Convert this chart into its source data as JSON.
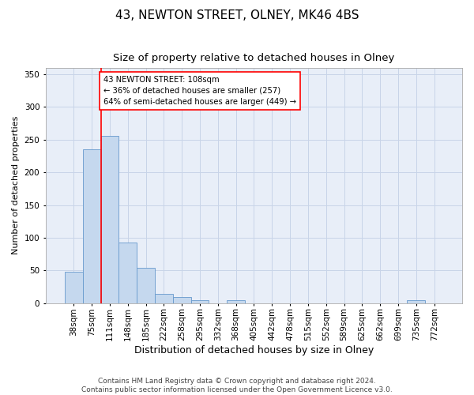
{
  "title": "43, NEWTON STREET, OLNEY, MK46 4BS",
  "subtitle": "Size of property relative to detached houses in Olney",
  "xlabel": "Distribution of detached houses by size in Olney",
  "ylabel": "Number of detached properties",
  "categories": [
    "38sqm",
    "75sqm",
    "111sqm",
    "148sqm",
    "185sqm",
    "222sqm",
    "258sqm",
    "295sqm",
    "332sqm",
    "368sqm",
    "405sqm",
    "442sqm",
    "478sqm",
    "515sqm",
    "552sqm",
    "589sqm",
    "625sqm",
    "662sqm",
    "699sqm",
    "735sqm",
    "772sqm"
  ],
  "bar_heights": [
    48,
    235,
    256,
    93,
    54,
    14,
    9,
    5,
    0,
    5,
    0,
    0,
    0,
    0,
    0,
    0,
    0,
    0,
    0,
    4,
    0
  ],
  "bar_color": "#c5d8ee",
  "bar_edge_color": "#6699cc",
  "property_line_index": 2,
  "annotation_text": "43 NEWTON STREET: 108sqm\n← 36% of detached houses are smaller (257)\n64% of semi-detached houses are larger (449) →",
  "annotation_box_color": "white",
  "annotation_box_edge_color": "red",
  "property_line_color": "red",
  "grid_color": "#c8d4e8",
  "plot_background_color": "#e8eef8",
  "ylim": [
    0,
    360
  ],
  "yticks": [
    0,
    50,
    100,
    150,
    200,
    250,
    300,
    350
  ],
  "footnote": "Contains HM Land Registry data © Crown copyright and database right 2024.\nContains public sector information licensed under the Open Government Licence v3.0.",
  "title_fontsize": 11,
  "subtitle_fontsize": 9.5,
  "xlabel_fontsize": 9,
  "ylabel_fontsize": 8,
  "tick_fontsize": 7.5,
  "footnote_fontsize": 6.5
}
